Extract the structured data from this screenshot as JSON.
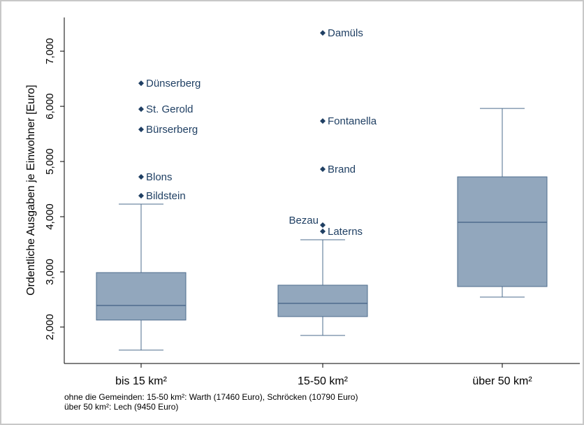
{
  "chart_data": {
    "type": "box",
    "y_label": "Ordentliche Ausgaben je Einwohner [Euro]",
    "categories": [
      "bis 15 km²",
      "15-50 km²",
      "über 50 km²"
    ],
    "boxes": [
      {
        "min": 1582,
        "q1": 2127,
        "median": 2392,
        "q3": 2987,
        "max": 4228,
        "outliers": [
          {
            "name": "Dünserberg",
            "value": 6418
          },
          {
            "name": "St. Gerold",
            "value": 5949
          },
          {
            "name": "Bürserberg",
            "value": 5582
          },
          {
            "name": "Blons",
            "value": 4722
          },
          {
            "name": "Bildstein",
            "value": 4380
          }
        ]
      },
      {
        "min": 1848,
        "q1": 2190,
        "median": 2430,
        "q3": 2759,
        "max": 3582,
        "outliers": [
          {
            "name": "Damüls",
            "value": 7329
          },
          {
            "name": "Fontanella",
            "value": 5734
          },
          {
            "name": "Brand",
            "value": 4861
          },
          {
            "name": "Bezau",
            "value": 3848
          },
          {
            "name": "Laterns",
            "value": 3734
          }
        ]
      },
      {
        "min": 2544,
        "q1": 2734,
        "median": 3899,
        "q3": 4722,
        "max": 5962,
        "outliers": []
      }
    ],
    "color": "#92a7bd",
    "line_color": "#4e6c8d",
    "marker_color": "#1f3f63",
    "ylim": [
      1340,
      7610
    ],
    "yticks": [
      {
        "value": 2000,
        "label": "2,000"
      },
      {
        "value": 3000,
        "label": "3,000"
      },
      {
        "value": 4000,
        "label": "4,000"
      },
      {
        "value": 5000,
        "label": "5,000"
      },
      {
        "value": 6000,
        "label": "6,000"
      },
      {
        "value": 7000,
        "label": "7,000"
      }
    ],
    "notes": [
      "ohne die Gemeinden: 15-50 km²: Warth (17460 Euro), Schröcken (10790 Euro)",
      "über 50 km²: Lech (9450 Euro)"
    ]
  }
}
